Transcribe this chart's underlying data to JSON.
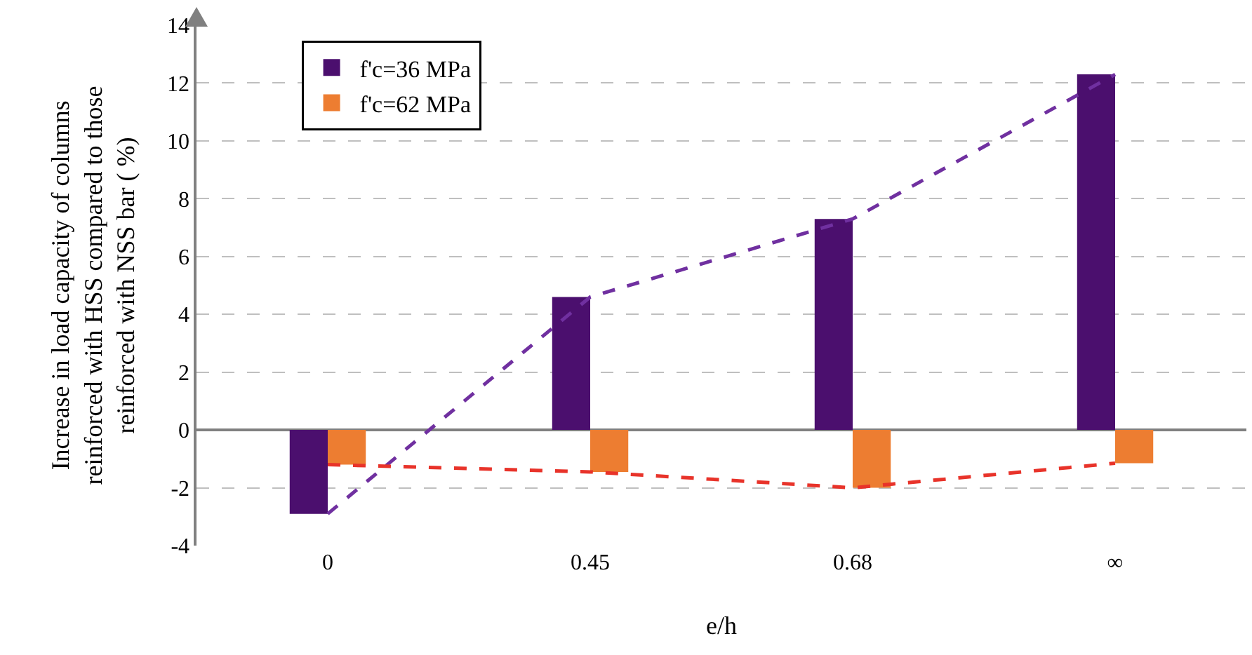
{
  "chart_data": {
    "type": "bar",
    "xlabel": "e/h",
    "ylabel": "Increase in load capacity of columns reinforced with HSS compared to those reinforced with NSS bar ( %)",
    "categories": [
      "0",
      "0.45",
      "0.68",
      "∞"
    ],
    "series": [
      {
        "name": "f'c=36 MPa",
        "color": "#4b0f6e",
        "values": [
          -2.9,
          4.6,
          7.3,
          12.3
        ]
      },
      {
        "name": "f'c=62 MPa",
        "color": "#ed7d31",
        "values": [
          -1.2,
          -1.45,
          -2.0,
          -1.15
        ]
      },
      {
        "type": "line",
        "color": "#7030a0",
        "line_style": "dashed",
        "values": [
          -2.9,
          4.6,
          7.3,
          12.3
        ]
      },
      {
        "type": "line",
        "color": "#e8332a",
        "line_style": "dashed",
        "values": [
          -1.2,
          -1.45,
          -2.0,
          -1.15
        ]
      }
    ],
    "ylim": [
      -4,
      14
    ],
    "yticks": [
      -4,
      -2,
      0,
      2,
      4,
      6,
      8,
      10,
      12,
      14
    ],
    "grid": "y",
    "legend": "top left"
  }
}
